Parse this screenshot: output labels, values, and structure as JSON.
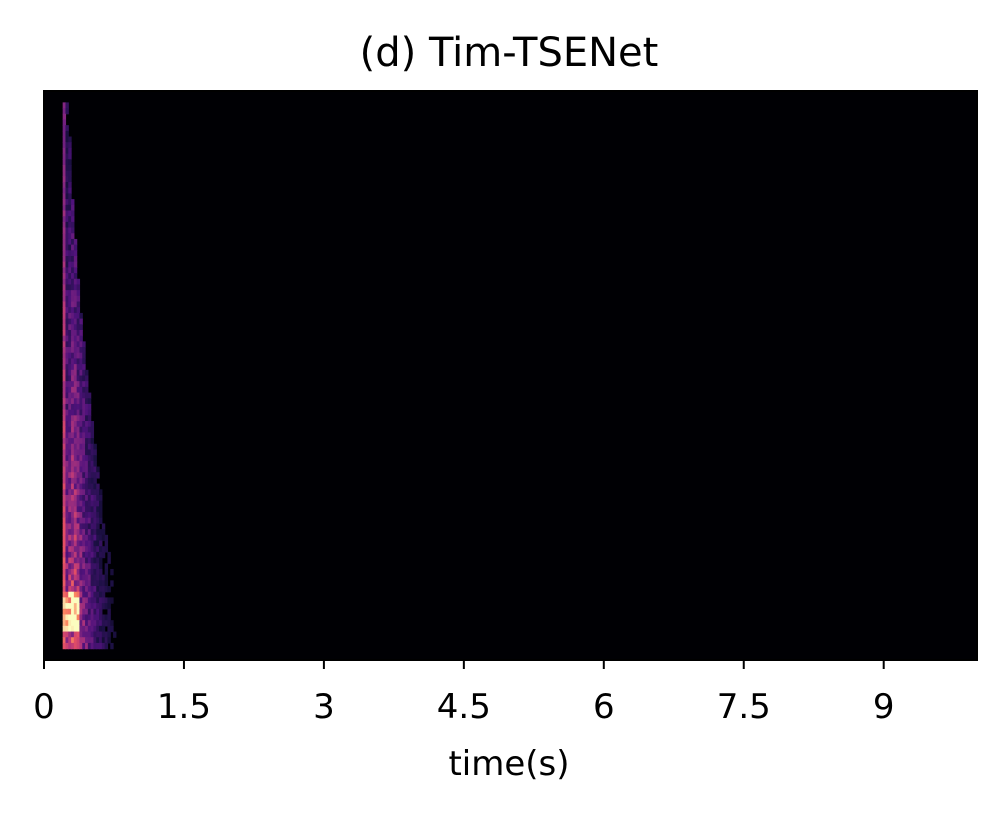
{
  "chart_data": {
    "type": "heatmap",
    "title": "(d) Tim-TSENet",
    "xlabel": "time(s)",
    "ylabel": "",
    "xlim": [
      0,
      10
    ],
    "x_ticks": [
      0,
      1.5,
      3,
      4.5,
      6,
      7.5,
      9
    ],
    "x_tick_labels": [
      "0",
      "1.5",
      "3",
      "4.5",
      "6",
      "7.5",
      "9"
    ],
    "y_ticks_visible": false,
    "colormap": "magma",
    "background_color": "#000004",
    "energy_region": {
      "time_start_s": 0.2,
      "time_end_s": 0.85,
      "peak_time_s": 0.3,
      "note": "spectral energy concentrated in the first ~0.8 s, strongest in low-frequency bins"
    },
    "colors": {
      "frame": "#000000",
      "ticks": "#000000",
      "low": "#000004",
      "mid": "#b73779",
      "high": "#fcfdbf"
    }
  }
}
